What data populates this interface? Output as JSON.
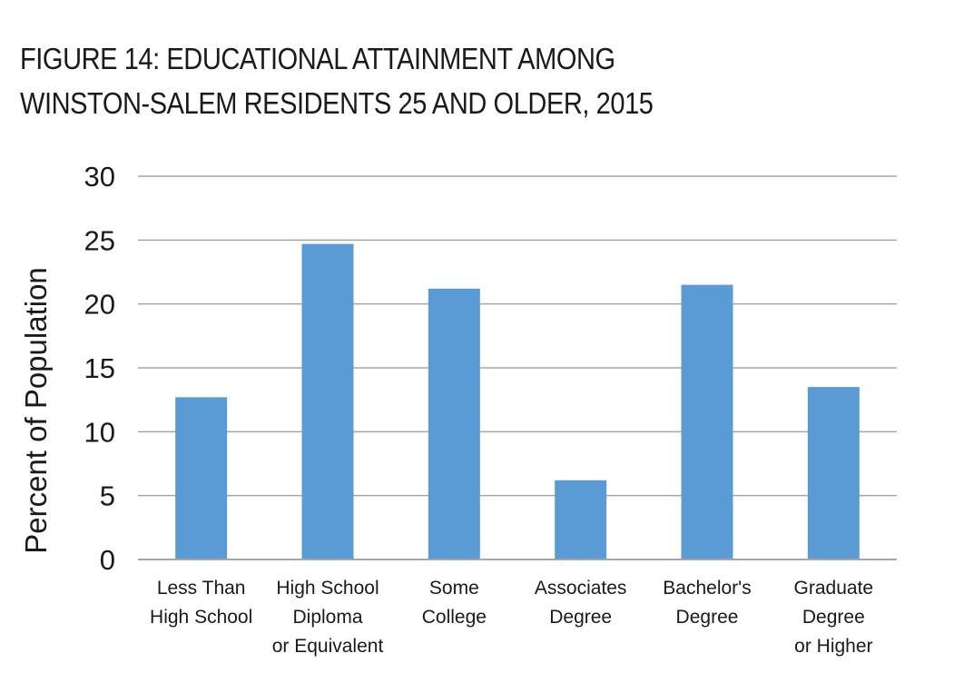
{
  "title": {
    "line1": "FIGURE 14: EDUCATIONAL ATTAINMENT AMONG",
    "line2": "WINSTON-SALEM RESIDENTS 25 AND OLDER, 2015"
  },
  "colors": {
    "bar": "#5B9BD5",
    "grid": "#A6A6A6",
    "text": "#1a1a1a"
  },
  "chart_data": {
    "type": "bar",
    "categories": [
      [
        "Less Than",
        "High School"
      ],
      [
        "High School",
        "Diploma",
        "or Equivalent"
      ],
      [
        "Some",
        "College"
      ],
      [
        "Associates",
        "Degree"
      ],
      [
        "Bachelor's",
        "Degree"
      ],
      [
        "Graduate",
        "Degree",
        "or Higher"
      ]
    ],
    "values": [
      12.7,
      24.7,
      21.2,
      6.2,
      21.5,
      13.5
    ],
    "ylabel": "Percent of Population",
    "ylim": [
      0,
      30
    ],
    "yticks": [
      0,
      5,
      10,
      15,
      20,
      25,
      30
    ],
    "grid": true
  }
}
